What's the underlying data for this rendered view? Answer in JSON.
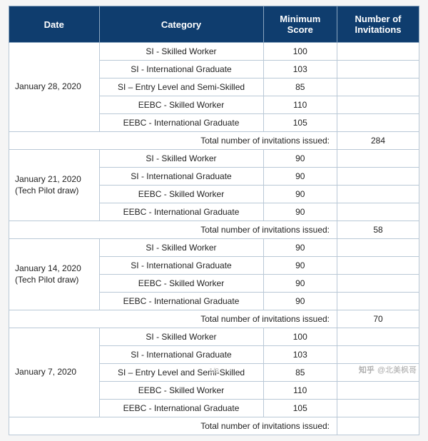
{
  "columns": {
    "date": "Date",
    "category": "Category",
    "minScore": "Minimum Score",
    "numInv": "Number of Invitations"
  },
  "totalLabel": "Total number of invitations issued:",
  "groups": [
    {
      "date": "January 28, 2020",
      "dateNote": "",
      "rows": [
        {
          "category": "SI - Skilled Worker",
          "score": "100",
          "inv": ""
        },
        {
          "category": "SI - International Graduate",
          "score": "103",
          "inv": ""
        },
        {
          "category": "SI – Entry Level and Semi-Skilled",
          "score": "85",
          "inv": ""
        },
        {
          "category": "EEBC - Skilled Worker",
          "score": "110",
          "inv": ""
        },
        {
          "category": "EEBC - International Graduate",
          "score": "105",
          "inv": ""
        }
      ],
      "total": "284"
    },
    {
      "date": "January 21, 2020",
      "dateNote": "(Tech Pilot draw)",
      "rows": [
        {
          "category": "SI - Skilled Worker",
          "score": "90",
          "inv": ""
        },
        {
          "category": "SI - International Graduate",
          "score": "90",
          "inv": ""
        },
        {
          "category": "EEBC - Skilled Worker",
          "score": "90",
          "inv": ""
        },
        {
          "category": "EEBC - International Graduate",
          "score": "90",
          "inv": ""
        }
      ],
      "total": "58"
    },
    {
      "date": "January 14, 2020",
      "dateNote": "(Tech Pilot draw)",
      "rows": [
        {
          "category": "SI - Skilled Worker",
          "score": "90",
          "inv": ""
        },
        {
          "category": "SI - International Graduate",
          "score": "90",
          "inv": ""
        },
        {
          "category": "EEBC - Skilled Worker",
          "score": "90",
          "inv": ""
        },
        {
          "category": "EEBC - International Graduate",
          "score": "90",
          "inv": ""
        }
      ],
      "total": "70"
    },
    {
      "date": "January 7, 2020",
      "dateNote": "",
      "rows": [
        {
          "category": "SI - Skilled Worker",
          "score": "100",
          "inv": ""
        },
        {
          "category": "SI - International Graduate",
          "score": "103",
          "inv": ""
        },
        {
          "category": "SI – Entry Level and Semi-Skilled",
          "score": "85",
          "inv": ""
        },
        {
          "category": "EEBC - Skilled Worker",
          "score": "110",
          "inv": ""
        },
        {
          "category": "EEBC - International Graduate",
          "score": "105",
          "inv": ""
        }
      ],
      "total": ""
    }
  ],
  "pager": "1/3",
  "watermark": {
    "site": "知乎",
    "handle": "@北美枫哥"
  },
  "style": {
    "headerBg": "#0f3d6e",
    "headerFg": "#ffffff",
    "borderColor": "#b9c8d6",
    "bodyBg": "#ffffff",
    "fontSizeHeader": 13,
    "fontSizeBody": 12,
    "colWidths": {
      "date": "22%",
      "category": "40%",
      "score": "18%",
      "inv": "20%"
    }
  }
}
